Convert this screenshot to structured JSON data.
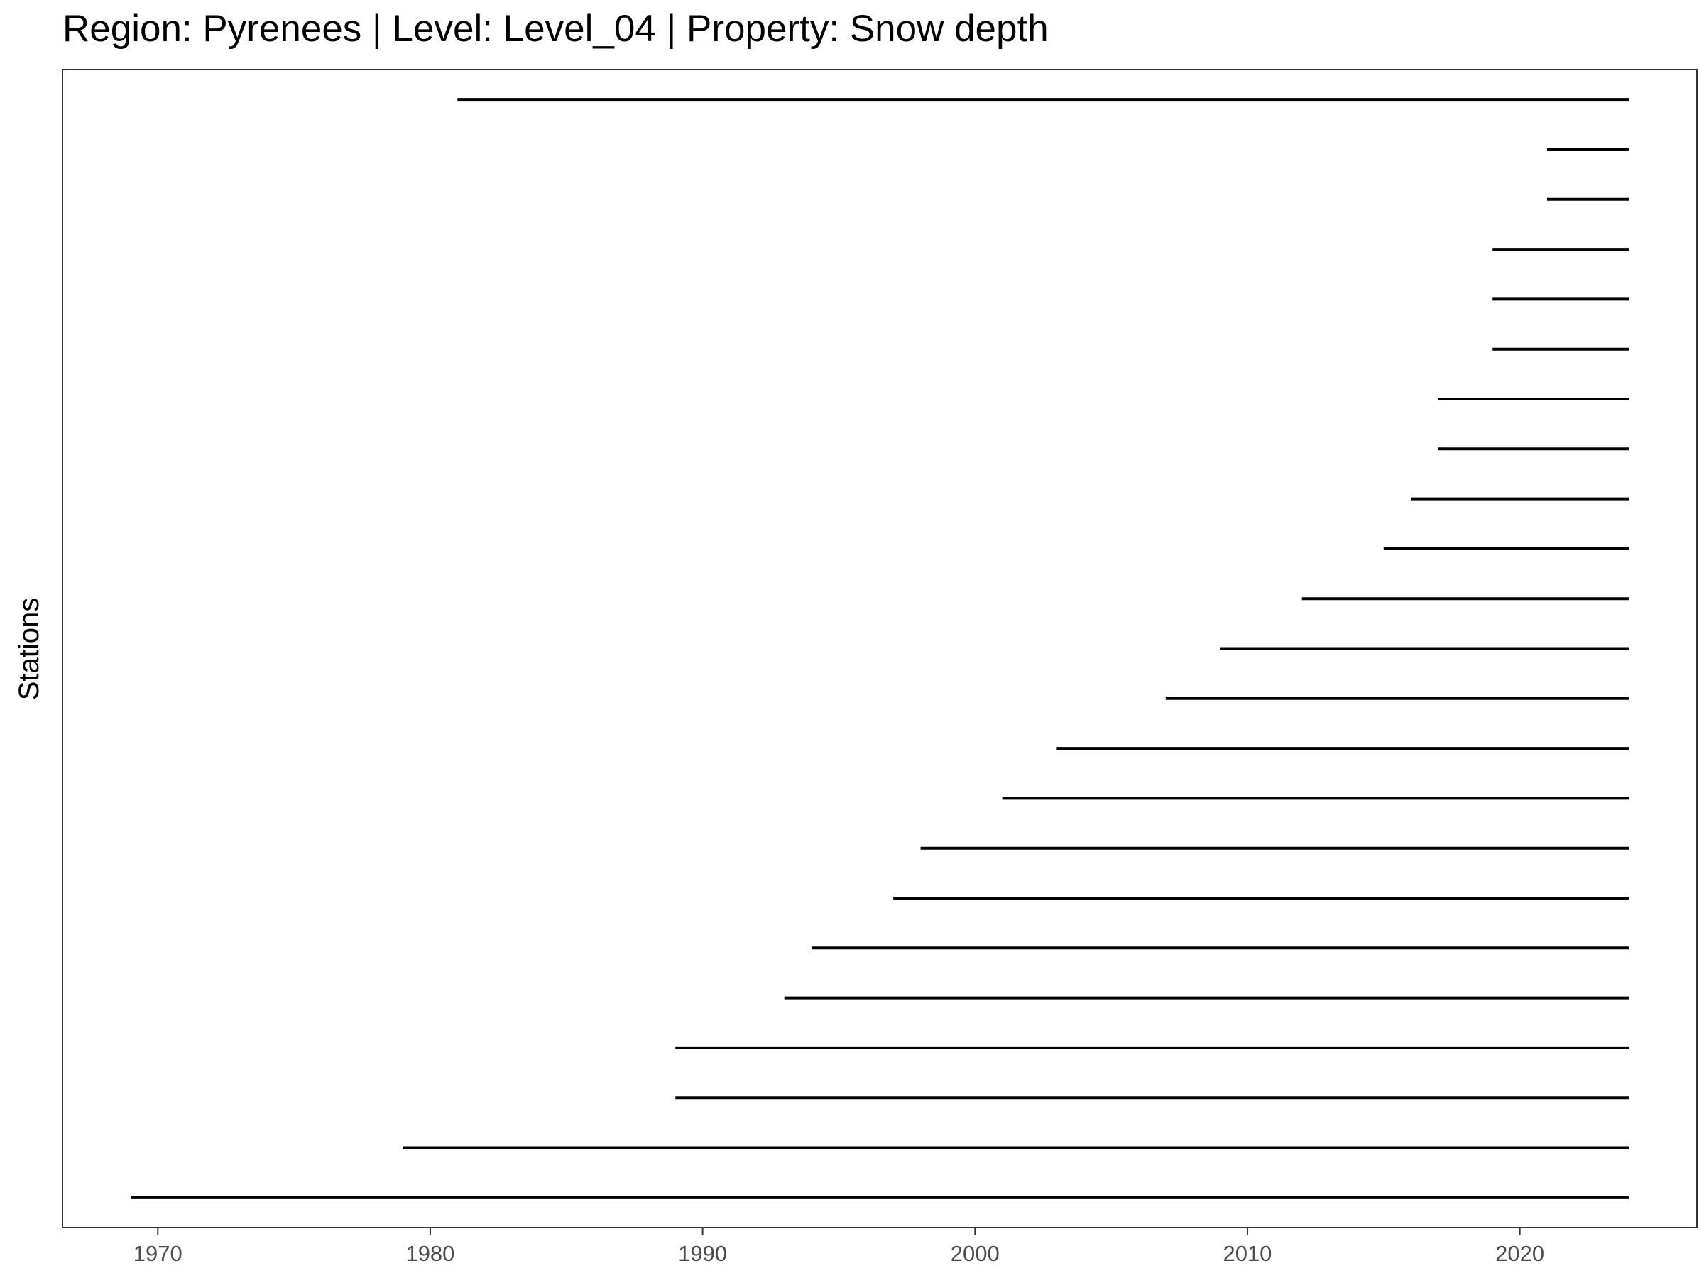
{
  "chart_data": {
    "type": "segment",
    "title": "Region: Pyrenees | Level: Level_04 | Property: Snow depth",
    "xlabel": "",
    "ylabel": "Stations",
    "xlim": [
      1966.5,
      2026.5
    ],
    "x_ticks": [
      1970,
      1980,
      1990,
      2000,
      2010,
      2020
    ],
    "x_tick_labels": [
      "1970",
      "1980",
      "1990",
      "2000",
      "2010",
      "2020"
    ],
    "grid": false,
    "legend": "none",
    "line_color": "#000000",
    "segments": [
      {
        "start": 1981,
        "end": 2024
      },
      {
        "start": 2021,
        "end": 2024
      },
      {
        "start": 2021,
        "end": 2024
      },
      {
        "start": 2019,
        "end": 2024
      },
      {
        "start": 2019,
        "end": 2024
      },
      {
        "start": 2019,
        "end": 2024
      },
      {
        "start": 2017,
        "end": 2024
      },
      {
        "start": 2017,
        "end": 2024
      },
      {
        "start": 2016,
        "end": 2024
      },
      {
        "start": 2015,
        "end": 2024
      },
      {
        "start": 2012,
        "end": 2024
      },
      {
        "start": 2009,
        "end": 2024
      },
      {
        "start": 2007,
        "end": 2024
      },
      {
        "start": 2003,
        "end": 2024
      },
      {
        "start": 2001,
        "end": 2024
      },
      {
        "start": 1998,
        "end": 2024
      },
      {
        "start": 1997,
        "end": 2024
      },
      {
        "start": 1994,
        "end": 2024
      },
      {
        "start": 1993,
        "end": 2024
      },
      {
        "start": 1989,
        "end": 2024
      },
      {
        "start": 1989,
        "end": 2024
      },
      {
        "start": 1979,
        "end": 2024
      },
      {
        "start": 1969,
        "end": 2024
      }
    ]
  }
}
